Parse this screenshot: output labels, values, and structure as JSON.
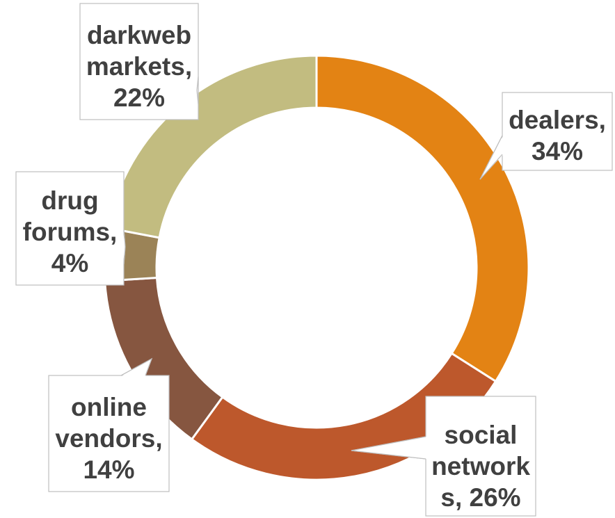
{
  "chart_data": {
    "type": "pie",
    "variant": "doughnut",
    "title": "",
    "legend": "none",
    "slices": [
      {
        "label": "dealers",
        "value": 34,
        "color": "#E38314",
        "data_label": [
          "dealers,",
          "34%"
        ]
      },
      {
        "label": "social networks",
        "value": 26,
        "color": "#BD582C",
        "data_label": [
          "social",
          "network",
          "s, 26%"
        ]
      },
      {
        "label": "online vendors",
        "value": 14,
        "color": "#865640",
        "data_label": [
          "online",
          "vendors,",
          "14%"
        ]
      },
      {
        "label": "drug forums",
        "value": 4,
        "color": "#9B8357",
        "data_label": [
          "drug",
          "forums,",
          "4%"
        ]
      },
      {
        "label": "darkweb markets",
        "value": 22,
        "color": "#C2BC80",
        "data_label": [
          "darkweb",
          "markets,",
          "22%"
        ]
      }
    ]
  }
}
